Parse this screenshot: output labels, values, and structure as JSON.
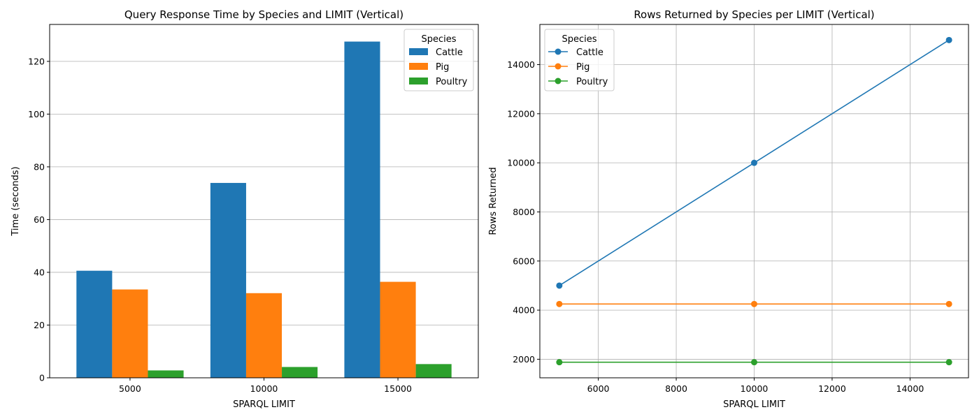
{
  "chart_data": [
    {
      "type": "bar",
      "title": "Query Response Time by Species and LIMIT (Vertical)",
      "xlabel": "SPARQL LIMIT",
      "ylabel": "Time (seconds)",
      "categories": [
        "5000",
        "10000",
        "15000"
      ],
      "series": [
        {
          "name": "Cattle",
          "values": [
            40.6,
            73.9,
            127.5
          ],
          "color": "#1f77b4"
        },
        {
          "name": "Pig",
          "values": [
            33.5,
            32.1,
            36.4
          ],
          "color": "#ff7f0e"
        },
        {
          "name": "Poultry",
          "values": [
            2.8,
            4.1,
            5.2
          ],
          "color": "#2ca02c"
        }
      ],
      "ylim": [
        0,
        134
      ],
      "yticks": [
        0,
        20,
        40,
        60,
        80,
        100,
        120
      ],
      "grid": "y",
      "legend_title": "Species",
      "legend_position": "top-right"
    },
    {
      "type": "line",
      "title": "Rows Returned by Species per LIMIT (Vertical)",
      "xlabel": "SPARQL LIMIT",
      "ylabel": "Rows Returned",
      "x": [
        5000,
        10000,
        15000
      ],
      "series": [
        {
          "name": "Cattle",
          "values": [
            5000,
            10000,
            15000
          ],
          "color": "#1f77b4"
        },
        {
          "name": "Pig",
          "values": [
            4250,
            4250,
            4250
          ],
          "color": "#ff7f0e"
        },
        {
          "name": "Poultry",
          "values": [
            1880,
            1880,
            1880
          ],
          "color": "#2ca02c"
        }
      ],
      "xlim": [
        4500,
        15500
      ],
      "ylim": [
        1244,
        15636
      ],
      "xticks": [
        6000,
        8000,
        10000,
        12000,
        14000
      ],
      "yticks": [
        2000,
        4000,
        6000,
        8000,
        10000,
        12000,
        14000
      ],
      "grid": "both",
      "legend_title": "Species",
      "legend_position": "top-left"
    }
  ]
}
